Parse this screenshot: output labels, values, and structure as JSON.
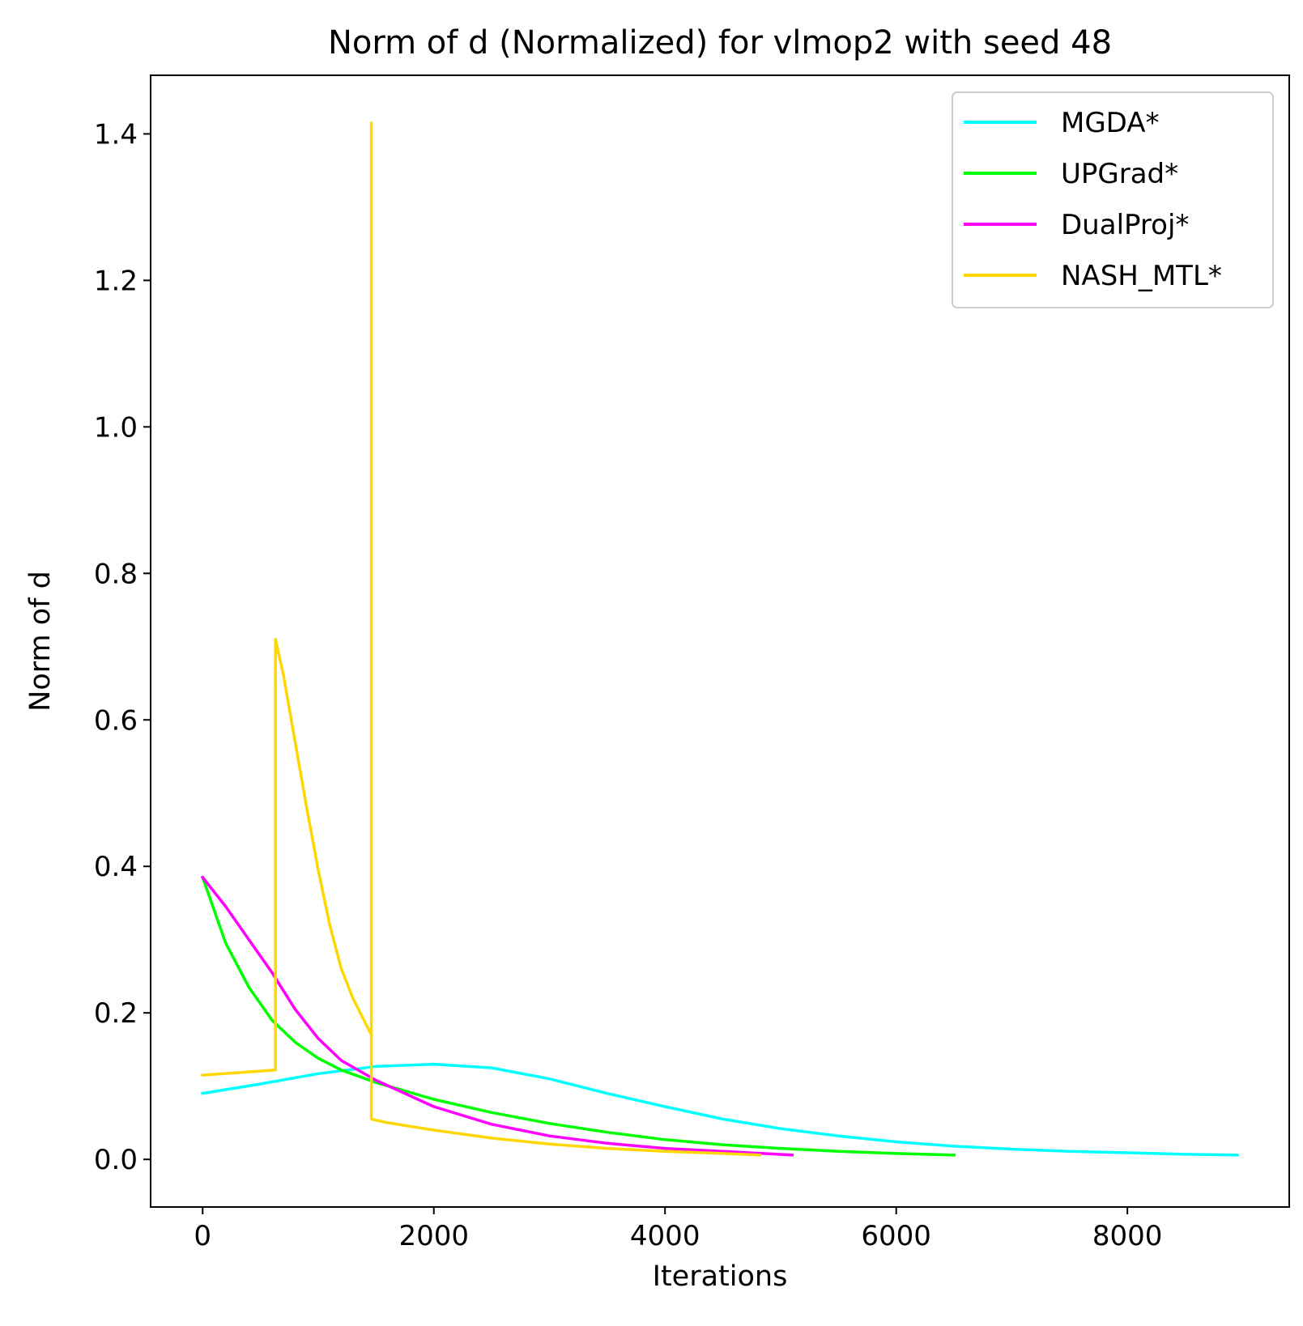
{
  "chart_data": {
    "type": "line",
    "title": "Norm of d (Normalized) for vlmop2 with seed 48",
    "xlabel": "Iterations",
    "ylabel": "Norm of d",
    "xlim": [
      -450,
      9400
    ],
    "ylim": [
      -0.065,
      1.48
    ],
    "xticks": [
      0,
      2000,
      4000,
      6000,
      8000
    ],
    "xtick_labels": [
      "0",
      "2000",
      "4000",
      "6000",
      "8000"
    ],
    "yticks": [
      0.0,
      0.2,
      0.4,
      0.6,
      0.8,
      1.0,
      1.2,
      1.4
    ],
    "ytick_labels": [
      "0.0",
      "0.2",
      "0.4",
      "0.6",
      "0.8",
      "1.0",
      "1.2",
      "1.4"
    ],
    "grid": false,
    "legend_position": "top-right",
    "series": [
      {
        "name": "MGDA*",
        "color": "#00ffff",
        "x": [
          0,
          500,
          1000,
          1500,
          2000,
          2500,
          3000,
          3500,
          4000,
          4500,
          5000,
          5500,
          6000,
          6500,
          7000,
          7500,
          8000,
          8500,
          8950
        ],
        "y": [
          0.09,
          0.103,
          0.117,
          0.127,
          0.13,
          0.125,
          0.11,
          0.09,
          0.072,
          0.055,
          0.042,
          0.032,
          0.024,
          0.018,
          0.014,
          0.011,
          0.009,
          0.007,
          0.006
        ]
      },
      {
        "name": "UPGrad*",
        "color": "#00ff00",
        "x": [
          0,
          200,
          400,
          600,
          800,
          1000,
          1200,
          1500,
          2000,
          2500,
          3000,
          3500,
          4000,
          4500,
          5000,
          5500,
          6000,
          6500
        ],
        "y": [
          0.385,
          0.295,
          0.235,
          0.19,
          0.16,
          0.138,
          0.122,
          0.105,
          0.082,
          0.064,
          0.049,
          0.037,
          0.027,
          0.02,
          0.015,
          0.011,
          0.008,
          0.006
        ]
      },
      {
        "name": "DualProj*",
        "color": "#ff00ff",
        "x": [
          0,
          200,
          400,
          600,
          800,
          1000,
          1200,
          1500,
          2000,
          2500,
          3000,
          3500,
          4000,
          4500,
          5100
        ],
        "y": [
          0.385,
          0.345,
          0.3,
          0.255,
          0.205,
          0.165,
          0.135,
          0.108,
          0.072,
          0.048,
          0.032,
          0.022,
          0.015,
          0.011,
          0.006
        ]
      },
      {
        "name": "NASH_MTL*",
        "color": "#ffd700",
        "x": [
          0,
          630,
          630,
          700,
          800,
          900,
          1000,
          1100,
          1200,
          1300,
          1460,
          1460,
          1460,
          1600,
          2000,
          2500,
          3000,
          3500,
          4000,
          4500,
          4820
        ],
        "y": [
          0.115,
          0.122,
          0.71,
          0.66,
          0.57,
          0.48,
          0.395,
          0.32,
          0.26,
          0.22,
          0.17,
          1.415,
          0.055,
          0.05,
          0.04,
          0.029,
          0.021,
          0.015,
          0.011,
          0.008,
          0.006
        ]
      }
    ]
  }
}
